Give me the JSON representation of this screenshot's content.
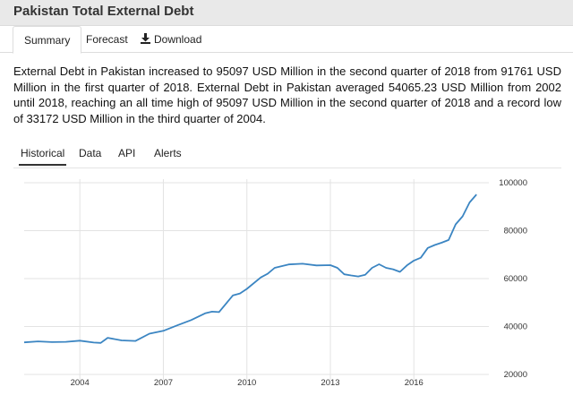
{
  "header": {
    "title": "Pakistan Total External Debt"
  },
  "top_tabs": [
    {
      "label": "Summary",
      "active": true
    },
    {
      "label": "Forecast",
      "active": false
    },
    {
      "label": "Download",
      "active": false,
      "icon": "download-icon"
    }
  ],
  "summary_text": "External Debt in Pakistan increased to 95097 USD Million in the second quarter of 2018 from 91761 USD Million in the first quarter of 2018. External Debt in Pakistan averaged 54065.23 USD Million from 2002 until 2018, reaching an all time high of 95097 USD Million in the second quarter of 2018 and a record low of 33172 USD Million in the third quarter of 2004.",
  "chart_tabs": [
    {
      "label": "Historical",
      "active": true
    },
    {
      "label": "Data",
      "active": false
    },
    {
      "label": "API",
      "active": false
    },
    {
      "label": "Alerts",
      "active": false
    }
  ],
  "colors": {
    "series": "#3b85c2",
    "grid": "#e3e3e3",
    "title_bar": "#e9e9e9"
  },
  "chart_data": {
    "type": "line",
    "title": "",
    "xlabel": "",
    "ylabel": "",
    "xlim": [
      2002.0,
      2018.5
    ],
    "ylim": [
      20000,
      100000
    ],
    "grid": true,
    "x_ticks": [
      "2004",
      "2007",
      "2010",
      "2013",
      "2016"
    ],
    "y_ticks": [
      "100000",
      "80000",
      "60000",
      "40000",
      "20000"
    ],
    "series": [
      {
        "name": "",
        "x": [
          2002.0,
          2002.5,
          2003.0,
          2003.5,
          2004.0,
          2004.5,
          2004.75,
          2005.0,
          2005.5,
          2006.0,
          2006.5,
          2006.75,
          2007.0,
          2007.5,
          2008.0,
          2008.5,
          2008.75,
          2009.0,
          2009.5,
          2009.75,
          2010.0,
          2010.5,
          2010.75,
          2011.0,
          2011.5,
          2012.0,
          2012.5,
          2013.0,
          2013.25,
          2013.5,
          2013.75,
          2014.0,
          2014.25,
          2014.5,
          2014.75,
          2015.0,
          2015.25,
          2015.5,
          2015.75,
          2016.0,
          2016.25,
          2016.5,
          2016.75,
          2017.0,
          2017.25,
          2017.5,
          2017.75,
          2018.0,
          2018.25
        ],
        "values": [
          33400,
          33800,
          33500,
          33600,
          34100,
          33300,
          33172,
          35300,
          34200,
          34000,
          37000,
          37600,
          38200,
          40500,
          42700,
          45500,
          46200,
          46000,
          53000,
          53800,
          55700,
          60500,
          62000,
          64500,
          65900,
          66200,
          65500,
          65600,
          64500,
          61800,
          61300,
          60900,
          61600,
          64500,
          66000,
          64500,
          63900,
          62800,
          65500,
          67500,
          68700,
          72800,
          74000,
          75000,
          76100,
          82600,
          86000,
          91761,
          95097
        ]
      }
    ]
  }
}
